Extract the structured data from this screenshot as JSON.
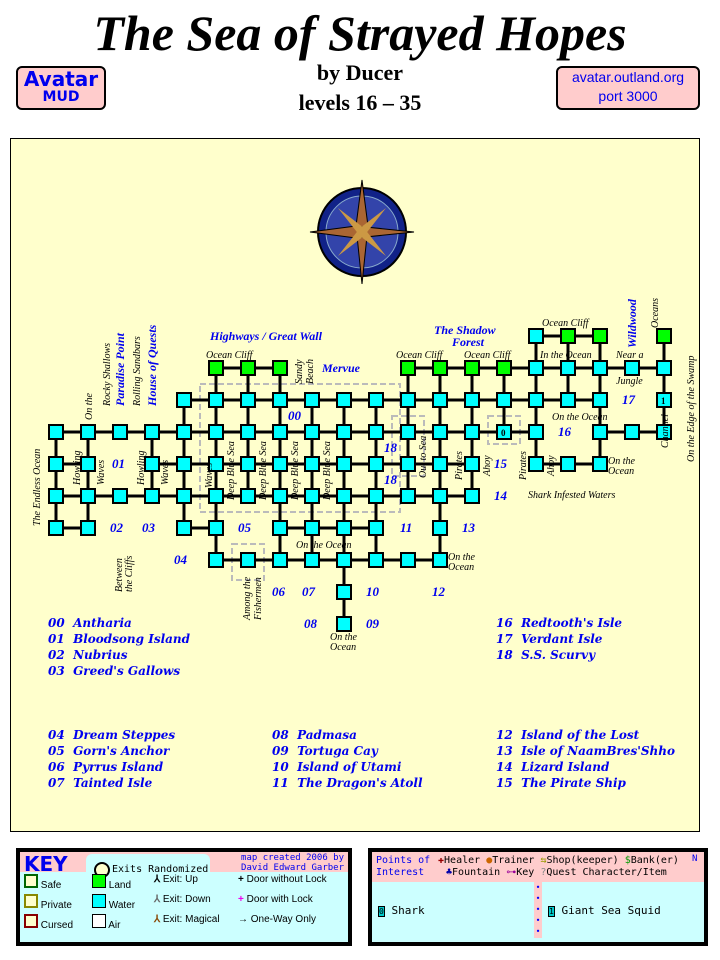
{
  "title": "The Sea of Strayed Hopes",
  "author": "by Ducer",
  "levels": "levels 16 – 35",
  "badge_left": {
    "line1": "Avatar",
    "line2": "MUD"
  },
  "badge_right": {
    "line1": "avatar.outland.org",
    "line2": "port 3000"
  },
  "map_labels": {
    "highways": "Highways / Great Wall",
    "shadow_forest1": "The Shadow",
    "shadow_forest2": "Forest",
    "mervue": "Mervue",
    "wildwood": "Wildwood",
    "paradise": "Paradise Point",
    "house": "House of Quests",
    "endless": "The Endless Ocean",
    "rocky": "Rocky Shallows",
    "rolling": "Rolling Sandbars",
    "ocean_cliff": "Ocean Cliff",
    "sandy1": "Sandy",
    "sandy2": "Beach",
    "on_the": "On the",
    "ocean": "Ocean",
    "howling": "Howling",
    "waves": "Waves",
    "deep_blue": "Deep Blue Sea",
    "between1": "Between",
    "between2": "the Cliffs",
    "among1": "Among the",
    "among2": "Fishermen",
    "on_the_ocean": "On the Ocean",
    "in_the_ocean": "In the Ocean",
    "near_a": "Near a",
    "jungle": "Jungle",
    "the_oceans_edge1": "The",
    "the_oceans_edge2": "Oceans",
    "the_oceans_edge3": "Edge",
    "channel": "Channel",
    "edge_swamp": "On the Edge of the Swamp",
    "out_to_sea": "Out to Sea",
    "pirates": "Pirates",
    "ahoy": "Ahoy",
    "shark_waters": "Shark Infested Waters"
  },
  "area_numbers": [
    "00",
    "01",
    "02",
    "03",
    "04",
    "05",
    "06",
    "07",
    "08",
    "09",
    "10",
    "11",
    "12",
    "13",
    "14",
    "15",
    "16",
    "17",
    "18"
  ],
  "areas": [
    {
      "num": "00",
      "name": "Antharia"
    },
    {
      "num": "01",
      "name": "Bloodsong Island"
    },
    {
      "num": "02",
      "name": "Nubrius"
    },
    {
      "num": "03",
      "name": "Greed's Gallows"
    },
    {
      "num": "04",
      "name": "Dream Steppes"
    },
    {
      "num": "05",
      "name": "Gorn's Anchor"
    },
    {
      "num": "06",
      "name": "Pyrrus Island"
    },
    {
      "num": "07",
      "name": "Tainted Isle"
    },
    {
      "num": "08",
      "name": "Padmasa"
    },
    {
      "num": "09",
      "name": "Tortuga Cay"
    },
    {
      "num": "10",
      "name": "Island of Utami"
    },
    {
      "num": "11",
      "name": "The Dragon's Atoll"
    },
    {
      "num": "12",
      "name": "Island of the Lost"
    },
    {
      "num": "13",
      "name": "Isle of NaamBres'Shho"
    },
    {
      "num": "14",
      "name": "Lizard Island"
    },
    {
      "num": "15",
      "name": "The Pirate Ship"
    },
    {
      "num": "16",
      "name": "Redtooth's Isle"
    },
    {
      "num": "17",
      "name": "Verdant Isle"
    },
    {
      "num": "18",
      "name": "S.S. Scurvy"
    }
  ],
  "key": {
    "title": "KEY",
    "randomized": "Exits Randomized",
    "credit1": "map created 2006 by",
    "credit2": "David Edward Garber",
    "safe": "Safe",
    "private": "Private",
    "cursed": "Cursed",
    "land": "Land",
    "water": "Water",
    "air": "Air",
    "up": "Exit: Up",
    "down": "Exit: Down",
    "magical": "Exit: Magical",
    "door": "Door without Lock",
    "door_lock": "Door with Lock",
    "oneway": "One-Way Only"
  },
  "poi": {
    "title1": "Points of",
    "title2": "Interest",
    "healer": "Healer",
    "trainer": "Trainer",
    "shop": "Shop(keeper)",
    "bank": "Bank(er)",
    "fountain": "Fountain",
    "key": "Key",
    "quest": "Quest Character/Item",
    "mob0_id": "0",
    "mob0": "Shark",
    "mob1_id": "1",
    "mob1": "Giant Sea Squid",
    "north": "N"
  },
  "colors": {
    "parchment": "#ffffcc",
    "water": "#00ffff",
    "land": "#00ff00",
    "label_blue": "#0000ee",
    "badge": "#ffcccc",
    "key_bg": "#ccffff"
  }
}
